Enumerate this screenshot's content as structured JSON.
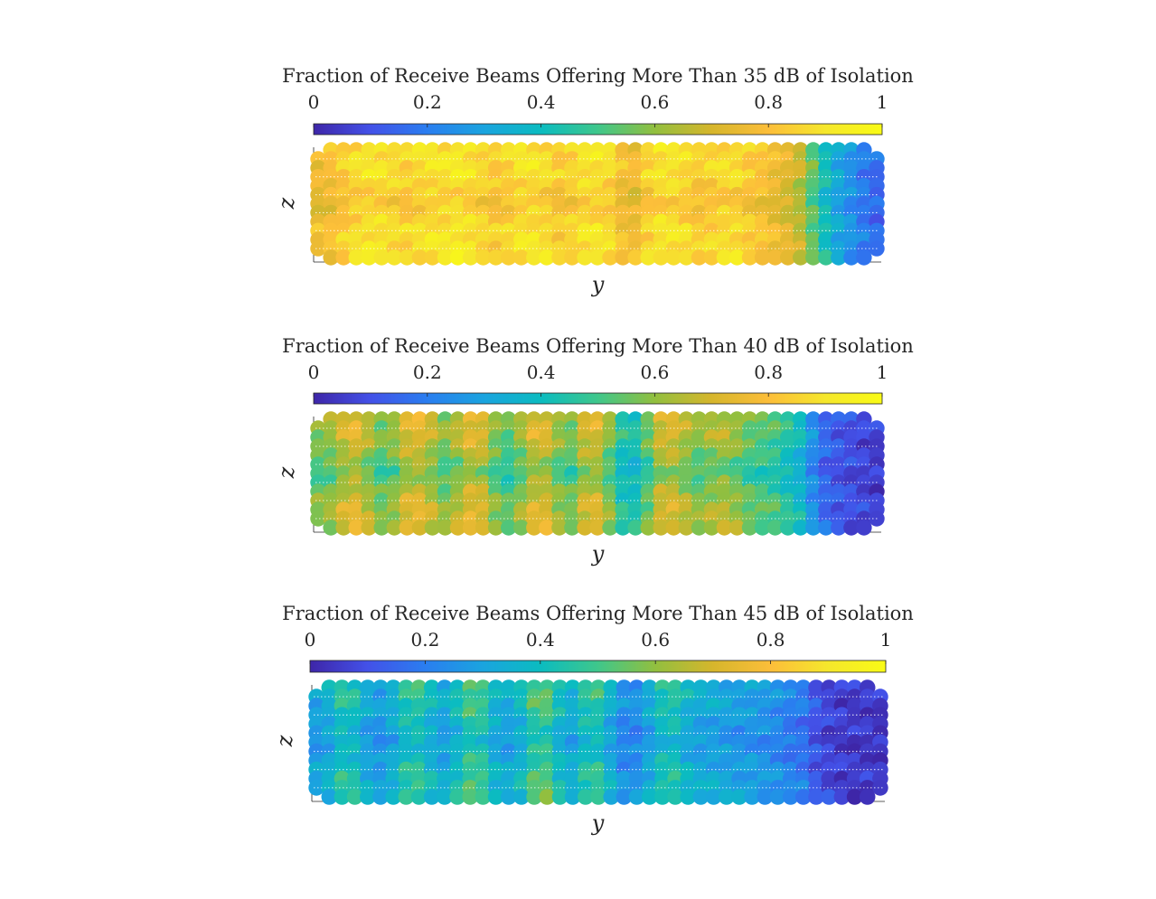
{
  "chart_data": [
    {
      "type": "heatmap",
      "title": "Fraction of Receive Beams Offering More Than 35 dB of Isolation",
      "xlabel": "y",
      "ylabel": "z",
      "colorbar": {
        "ticks": [
          "0",
          "0.2",
          "0.4",
          "0.6",
          "0.8",
          "1"
        ],
        "range": [
          0,
          1
        ],
        "placement": "top",
        "colormap": [
          "#3e26a8",
          "#4351e8",
          "#2a7ef0",
          "#1aa4df",
          "#0bbcc0",
          "#3fc78b",
          "#92bf3f",
          "#d6b62c",
          "#fcbe3a",
          "#f5e72c",
          "#f9fb15"
        ]
      },
      "grid": "dots",
      "profile_y": [
        0.78,
        0.8,
        0.84,
        0.88,
        0.9,
        0.9,
        0.88,
        0.86,
        0.88,
        0.9,
        0.9,
        0.92,
        0.9,
        0.87,
        0.84,
        0.86,
        0.9,
        0.9,
        0.88,
        0.84,
        0.86,
        0.9,
        0.9,
        0.88,
        0.8,
        0.78,
        0.86,
        0.9,
        0.9,
        0.88,
        0.84,
        0.86,
        0.88,
        0.88,
        0.84,
        0.82,
        0.78,
        0.74,
        0.68,
        0.55,
        0.42,
        0.32,
        0.26,
        0.2,
        0.16
      ],
      "profile_z": [
        1.0,
        1.0,
        1.0,
        1.0,
        0.97,
        0.94,
        0.92,
        0.94,
        0.97,
        1.0,
        1.0,
        1.0,
        1.0
      ],
      "notes_hidden": ""
    },
    {
      "type": "heatmap",
      "title": "Fraction of Receive Beams Offering More Than 40 dB of Isolation",
      "xlabel": "y",
      "ylabel": "z",
      "colorbar": {
        "ticks": [
          "0",
          "0.2",
          "0.4",
          "0.6",
          "0.8",
          "1"
        ],
        "range": [
          0,
          1
        ],
        "placement": "top",
        "colormap": [
          "#3e26a8",
          "#4351e8",
          "#2a7ef0",
          "#1aa4df",
          "#0bbcc0",
          "#3fc78b",
          "#92bf3f",
          "#d6b62c",
          "#fcbe3a",
          "#f5e72c",
          "#f9fb15"
        ]
      },
      "grid": "dots",
      "profile_y": [
        0.6,
        0.62,
        0.7,
        0.74,
        0.66,
        0.58,
        0.62,
        0.72,
        0.74,
        0.68,
        0.6,
        0.66,
        0.74,
        0.72,
        0.6,
        0.54,
        0.62,
        0.72,
        0.72,
        0.62,
        0.58,
        0.7,
        0.72,
        0.6,
        0.46,
        0.44,
        0.56,
        0.7,
        0.72,
        0.66,
        0.6,
        0.64,
        0.66,
        0.62,
        0.56,
        0.54,
        0.52,
        0.46,
        0.4,
        0.26,
        0.16,
        0.12,
        0.1,
        0.08,
        0.06
      ],
      "profile_z": [
        1.0,
        1.0,
        1.0,
        0.96,
        0.92,
        0.86,
        0.82,
        0.86,
        0.92,
        0.96,
        1.0,
        1.0,
        1.0
      ],
      "notes_hidden": ""
    },
    {
      "type": "heatmap",
      "title": "Fraction of Receive Beams Offering More Than 45 dB of Isolation",
      "xlabel": "y",
      "ylabel": "z",
      "colorbar": {
        "ticks": [
          "0",
          "0.2",
          "0.4",
          "0.6",
          "0.8",
          "1"
        ],
        "range": [
          0,
          1
        ],
        "placement": "top",
        "colormap": [
          "#3e26a8",
          "#4351e8",
          "#2a7ef0",
          "#1aa4df",
          "#0bbcc0",
          "#3fc78b",
          "#92bf3f",
          "#d6b62c",
          "#fcbe3a",
          "#f5e72c",
          "#f9fb15"
        ]
      },
      "grid": "dots",
      "profile_y": [
        0.32,
        0.36,
        0.46,
        0.44,
        0.34,
        0.3,
        0.36,
        0.46,
        0.48,
        0.4,
        0.34,
        0.42,
        0.52,
        0.5,
        0.38,
        0.34,
        0.4,
        0.52,
        0.54,
        0.42,
        0.36,
        0.46,
        0.48,
        0.36,
        0.26,
        0.26,
        0.34,
        0.44,
        0.46,
        0.38,
        0.34,
        0.34,
        0.32,
        0.3,
        0.3,
        0.28,
        0.26,
        0.22,
        0.2,
        0.12,
        0.08,
        0.06,
        0.05,
        0.05,
        0.04
      ],
      "profile_z": [
        1.0,
        1.0,
        0.98,
        0.94,
        0.88,
        0.84,
        0.8,
        0.84,
        0.88,
        0.94,
        0.98,
        1.0,
        1.0
      ],
      "notes_hidden": ""
    }
  ]
}
